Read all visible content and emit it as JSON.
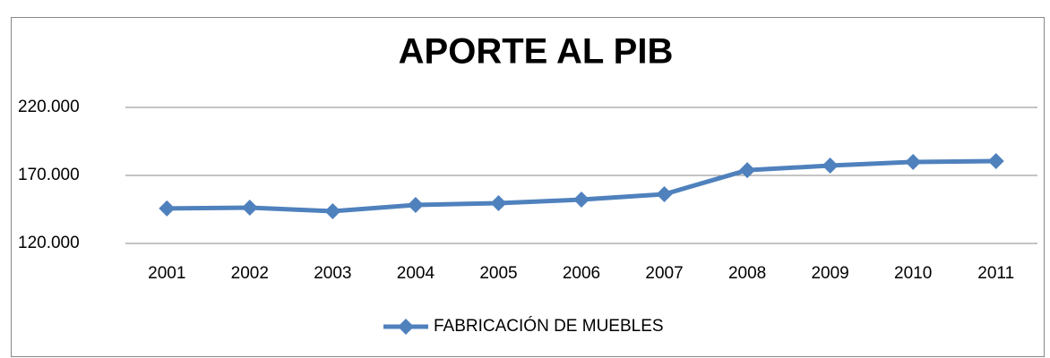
{
  "chart_data": {
    "type": "line",
    "title": "APORTE AL PIB",
    "categories": [
      "2001",
      "2002",
      "2003",
      "2004",
      "2005",
      "2006",
      "2007",
      "2008",
      "2009",
      "2010",
      "2011"
    ],
    "series": [
      {
        "name": "FABRICACIÓN DE MUEBLES",
        "color": "#4f81bd",
        "values": [
          145700,
          146300,
          143700,
          148300,
          149600,
          152200,
          156200,
          173900,
          177200,
          179900,
          180500
        ]
      }
    ],
    "ylim": [
      120000,
      220000
    ],
    "yticks": [
      {
        "value": 120000,
        "label": "120.000"
      },
      {
        "value": 170000,
        "label": "170.000"
      },
      {
        "value": 220000,
        "label": "220.000"
      }
    ],
    "grid": true,
    "legend": "bottom"
  }
}
